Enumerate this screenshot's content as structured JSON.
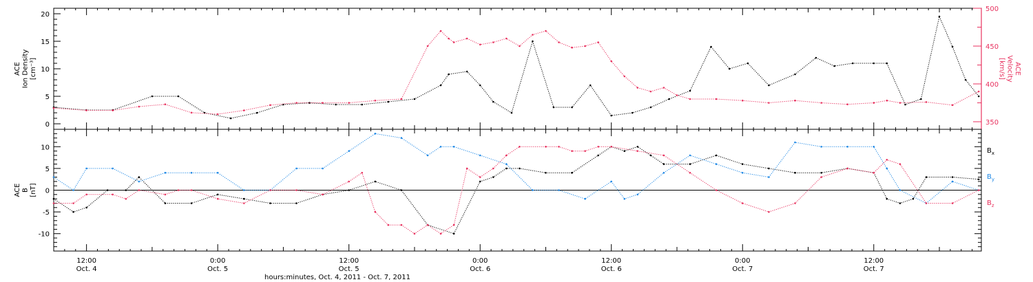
{
  "chart_data": [
    {
      "type": "scatter",
      "panel": "plasma",
      "left_axis_label": [
        "ACE",
        "Ion Density",
        "[cm⁻³]"
      ],
      "right_axis_label": [
        "ACE",
        "Velocity",
        "[km/s]"
      ],
      "ylim": [
        -1,
        21
      ],
      "y_ticks": [
        "0",
        "5",
        "10",
        "15",
        "20"
      ],
      "y2lim": [
        340,
        500
      ],
      "y2_ticks": [
        "350",
        "400",
        "450",
        "500"
      ],
      "colors": {
        "density": "#000000",
        "velocity": "#e8325f"
      },
      "series": [
        {
          "name": "Ion Density",
          "axis": "left",
          "x": [
            3.875,
            4.0,
            4.1,
            4.25,
            4.35,
            4.45,
            4.55,
            4.65,
            4.75,
            4.85,
            4.95,
            5.05,
            5.15,
            5.25,
            5.35,
            5.38,
            5.45,
            5.5,
            5.55,
            5.62,
            5.7,
            5.78,
            5.85,
            5.92,
            6.0,
            6.08,
            6.15,
            6.22,
            6.3,
            6.38,
            6.45,
            6.52,
            6.6,
            6.7,
            6.78,
            6.85,
            6.92,
            7.0,
            7.05,
            7.12,
            7.18,
            7.25,
            7.3,
            7.35,
            7.4
          ],
          "y": [
            3,
            2.5,
            2.5,
            5,
            5,
            2,
            1,
            2,
            3.5,
            3.8,
            3.5,
            3.5,
            4,
            4.5,
            7,
            9,
            9.5,
            7,
            4,
            2,
            15,
            3,
            3,
            7,
            1.5,
            2,
            3,
            4.5,
            6,
            14,
            10,
            11,
            7,
            9,
            12,
            10.5,
            11,
            11,
            11,
            3.5,
            4.5,
            19.5,
            14,
            8,
            5
          ]
        },
        {
          "name": "Velocity",
          "axis": "right",
          "x": [
            3.875,
            4.0,
            4.1,
            4.2,
            4.3,
            4.4,
            4.5,
            4.6,
            4.7,
            4.8,
            4.9,
            5.0,
            5.1,
            5.2,
            5.3,
            5.35,
            5.38,
            5.4,
            5.45,
            5.5,
            5.55,
            5.6,
            5.65,
            5.7,
            5.75,
            5.8,
            5.85,
            5.9,
            5.95,
            6.0,
            6.05,
            6.1,
            6.15,
            6.2,
            6.25,
            6.3,
            6.4,
            6.5,
            6.6,
            6.7,
            6.8,
            6.9,
            7.0,
            7.05,
            7.1,
            7.2,
            7.3,
            7.4
          ],
          "y": [
            368,
            365,
            365,
            370,
            373,
            362,
            360,
            365,
            372,
            375,
            375,
            375,
            378,
            380,
            450,
            470,
            460,
            455,
            460,
            452,
            455,
            460,
            450,
            465,
            470,
            455,
            448,
            450,
            455,
            430,
            410,
            395,
            390,
            395,
            385,
            380,
            380,
            378,
            375,
            378,
            375,
            373,
            375,
            378,
            375,
            376,
            372,
            390
          ]
        }
      ]
    },
    {
      "type": "scatter",
      "panel": "magnetic",
      "left_axis_label": [
        "ACE",
        "B",
        "[nT]"
      ],
      "ylim": [
        -14,
        14
      ],
      "y_ticks": [
        "-10",
        "-5",
        "0",
        "5",
        "10"
      ],
      "zero_line": true,
      "colors": {
        "Bx": "#000000",
        "By": "#1e88e5",
        "Bz": "#e8325f"
      },
      "series": [
        {
          "name": "Bx",
          "x": [
            3.875,
            3.95,
            4.0,
            4.08,
            4.15,
            4.2,
            4.3,
            4.4,
            4.5,
            4.6,
            4.7,
            4.8,
            4.9,
            5.0,
            5.1,
            5.2,
            5.3,
            5.4,
            5.5,
            5.55,
            5.6,
            5.65,
            5.75,
            5.85,
            5.95,
            6.0,
            6.05,
            6.1,
            6.15,
            6.2,
            6.3,
            6.4,
            6.5,
            6.6,
            6.7,
            6.8,
            6.9,
            7.0,
            7.05,
            7.1,
            7.15,
            7.2,
            7.3,
            7.4
          ],
          "y": [
            -2,
            -5,
            -4,
            0,
            0,
            3,
            -3,
            -3,
            -1,
            -2,
            -3,
            -3,
            -1,
            0,
            2,
            0,
            -8,
            -10,
            2,
            3,
            5,
            5,
            4,
            4,
            8,
            10,
            9,
            10,
            8,
            6,
            6,
            8,
            6,
            5,
            4,
            4,
            5,
            4,
            -2,
            -3,
            -2,
            3,
            3,
            2.5
          ]
        },
        {
          "name": "By",
          "x": [
            3.875,
            3.95,
            4.0,
            4.1,
            4.2,
            4.3,
            4.4,
            4.5,
            4.6,
            4.7,
            4.8,
            4.9,
            5.0,
            5.1,
            5.2,
            5.3,
            5.35,
            5.4,
            5.5,
            5.6,
            5.7,
            5.8,
            5.9,
            6.0,
            6.05,
            6.1,
            6.2,
            6.3,
            6.4,
            6.5,
            6.6,
            6.7,
            6.8,
            6.9,
            7.0,
            7.05,
            7.1,
            7.2,
            7.3,
            7.4
          ],
          "y": [
            3,
            0,
            5,
            5,
            2,
            4,
            4,
            4,
            0,
            0,
            5,
            5,
            9,
            13,
            12,
            8,
            10,
            10,
            8,
            6,
            0,
            0,
            -2,
            2,
            -2,
            -1,
            4,
            8,
            6,
            4,
            3,
            11,
            10,
            10,
            10,
            5,
            0,
            -3,
            2,
            0
          ]
        },
        {
          "name": "Bz",
          "x": [
            3.875,
            3.95,
            4.0,
            4.1,
            4.15,
            4.2,
            4.3,
            4.35,
            4.4,
            4.5,
            4.6,
            4.7,
            4.8,
            4.9,
            5.0,
            5.05,
            5.1,
            5.15,
            5.2,
            5.25,
            5.3,
            5.35,
            5.4,
            5.45,
            5.5,
            5.55,
            5.6,
            5.65,
            5.75,
            5.8,
            5.85,
            5.9,
            5.95,
            6.0,
            6.1,
            6.2,
            6.3,
            6.4,
            6.5,
            6.6,
            6.7,
            6.8,
            6.9,
            7.0,
            7.05,
            7.1,
            7.2,
            7.3,
            7.4
          ],
          "y": [
            -3,
            -3,
            -1,
            -1,
            -2,
            0,
            -1,
            0,
            0,
            -2,
            -3,
            0,
            0,
            -1,
            2,
            4,
            -5,
            -8,
            -8,
            -10,
            -8,
            -10,
            -8,
            5,
            3,
            5,
            8,
            10,
            10,
            10,
            9,
            9,
            10,
            10,
            9,
            8,
            4,
            0,
            -3,
            -5,
            -3,
            3,
            5,
            4,
            7,
            6,
            -3,
            -3,
            0
          ]
        }
      ]
    }
  ],
  "x_axis": {
    "xlim": [
      3.875,
      7.41
    ],
    "title": "hours:minutes, Oct.  4, 2011 - Oct.  7, 2011",
    "major_ticks": [
      {
        "x": 4.0,
        "time": "12:00",
        "date": "Oct. 4"
      },
      {
        "x": 4.5,
        "time": "0:00",
        "date": "Oct. 5"
      },
      {
        "x": 5.0,
        "time": "12:00",
        "date": "Oct. 5"
      },
      {
        "x": 5.5,
        "time": "0:00",
        "date": "Oct. 6"
      },
      {
        "x": 6.0,
        "time": "12:00",
        "date": "Oct. 6"
      },
      {
        "x": 6.5,
        "time": "0:00",
        "date": "Oct. 7"
      },
      {
        "x": 7.0,
        "time": "12:00",
        "date": "Oct. 7"
      }
    ]
  },
  "legend": {
    "placement": "right",
    "items": [
      {
        "label": "B",
        "sub": "x",
        "color": "#000000"
      },
      {
        "label": "B",
        "sub": "y",
        "color": "#1e88e5"
      },
      {
        "label": "B",
        "sub": "z",
        "color": "#e8325f"
      }
    ]
  }
}
